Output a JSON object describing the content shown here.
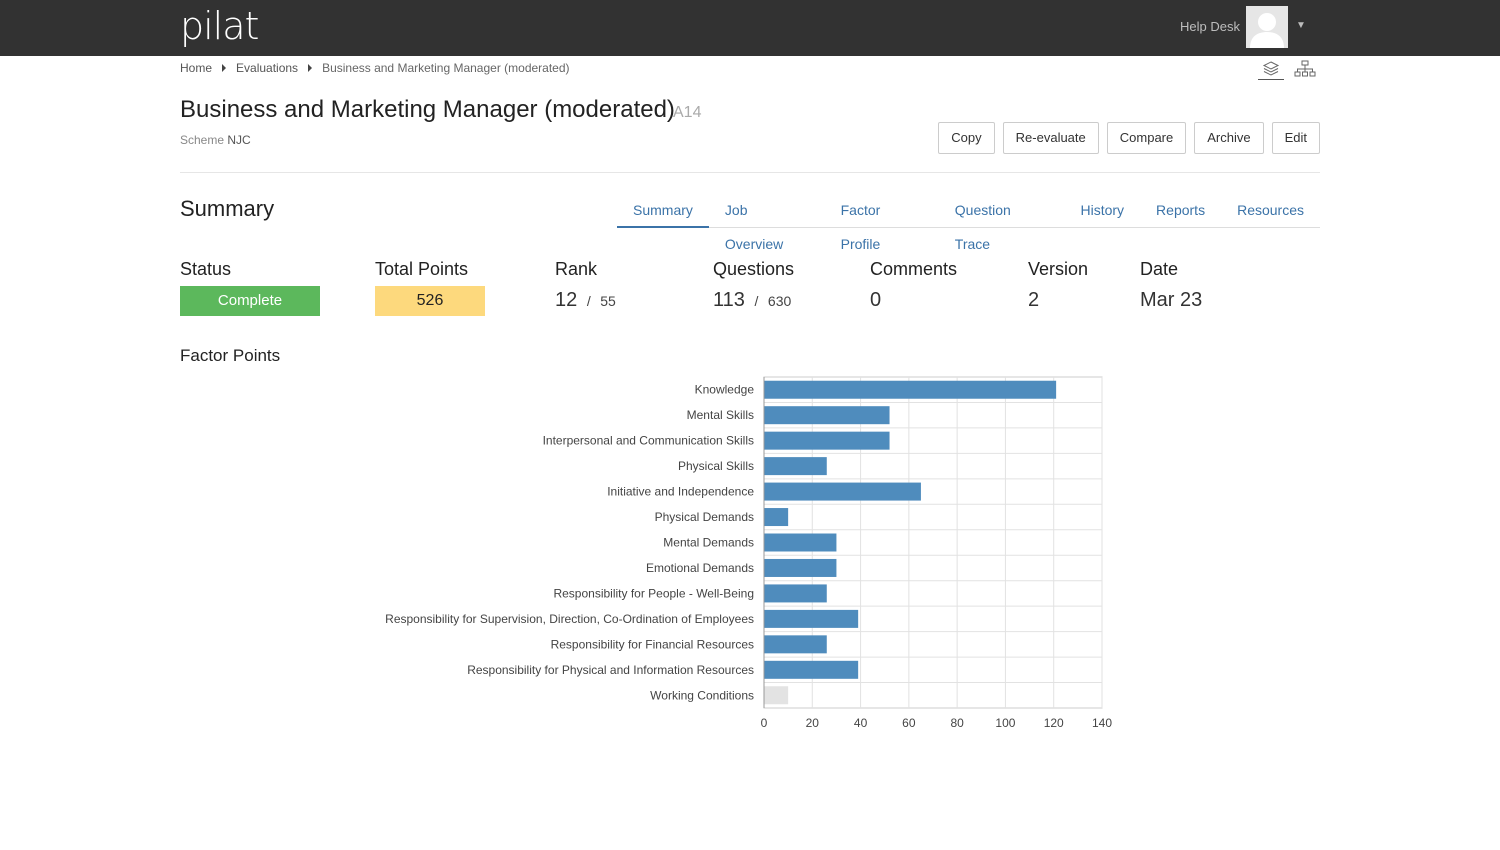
{
  "app": {
    "logo": "pilat"
  },
  "header": {
    "help_desk": "Help Desk"
  },
  "breadcrumb": [
    "Home",
    "Evaluations",
    "Business and Marketing Manager (moderated)"
  ],
  "page": {
    "title": "Business and Marketing Manager (moderated)",
    "code": "A14",
    "scheme_label": "Scheme",
    "scheme_value": "NJC"
  },
  "actions": [
    "Copy",
    "Re-evaluate",
    "Compare",
    "Archive",
    "Edit"
  ],
  "summary": {
    "title": "Summary",
    "tabs": [
      "Summary",
      "Job Overview",
      "Factor Profile",
      "Question Trace",
      "History",
      "Reports",
      "Resources"
    ],
    "active_tab": "Summary"
  },
  "stats": {
    "status_label": "Status",
    "status_value": "Complete",
    "points_label": "Total Points",
    "points_value": "526",
    "rank_label": "Rank",
    "rank_value": "12",
    "rank_total": "55",
    "questions_label": "Questions",
    "questions_value": "113",
    "questions_total": "630",
    "comments_label": "Comments",
    "comments_value": "0",
    "version_label": "Version",
    "version_value": "2",
    "date_label": "Date",
    "date_value": "Mar 23",
    "separator": "/"
  },
  "colors": {
    "complete": "#5cb85c",
    "points": "#fdd97d",
    "bar": "#4f8cbd",
    "bar_muted": "#e3e3e3",
    "link": "#3b73a8"
  },
  "factor_points_title": "Factor Points",
  "chart_data": {
    "type": "bar",
    "orientation": "horizontal",
    "categories": [
      "Knowledge",
      "Mental Skills",
      "Interpersonal and Communication Skills",
      "Physical Skills",
      "Initiative and Independence",
      "Physical Demands",
      "Mental Demands",
      "Emotional Demands",
      "Responsibility for People - Well-Being",
      "Responsibility for Supervision, Direction, Co-Ordination of Employees",
      "Responsibility for Financial Resources",
      "Responsibility for Physical and Information Resources",
      "Working Conditions"
    ],
    "values": [
      121,
      52,
      52,
      26,
      65,
      10,
      30,
      30,
      26,
      39,
      26,
      39,
      10
    ],
    "muted": [
      false,
      false,
      false,
      false,
      false,
      false,
      false,
      false,
      false,
      false,
      false,
      false,
      true
    ],
    "xlim": [
      0,
      140
    ],
    "xticks": [
      0,
      20,
      40,
      60,
      80,
      100,
      120,
      140
    ],
    "grid": true
  }
}
